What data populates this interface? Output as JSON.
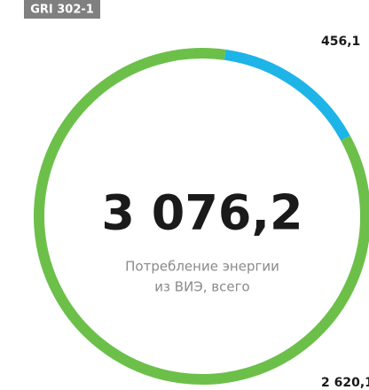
{
  "badge": "GRI 302-1",
  "chart_data": {
    "type": "donut",
    "categories": [
      null,
      null
    ],
    "values": [
      456.1,
      2620.1
    ],
    "value_labels": [
      "456,1",
      "2 620,1"
    ],
    "colors": [
      "#1db4e8",
      "#6cc04a"
    ],
    "center_value": "3 076,2",
    "center_label": [
      "Потребление энергии",
      "из ВИЭ, всего"
    ]
  }
}
